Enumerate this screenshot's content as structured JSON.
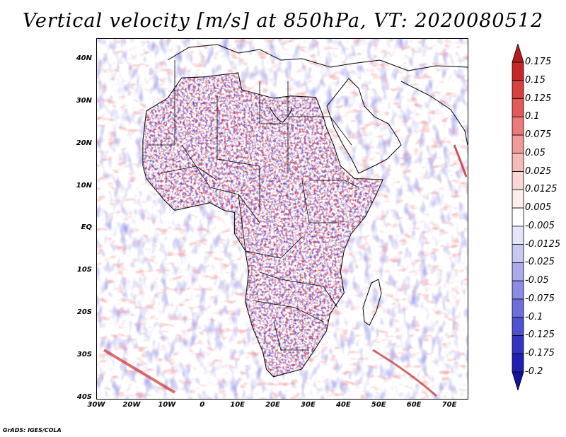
{
  "title": "Vertical velocity [m/s] at 850hPa, VT: 2020080512",
  "credit": "GrADS: IGES/COLA",
  "lat_labels": [
    "40N",
    "30N",
    "20N",
    "10N",
    "EQ",
    "10S",
    "20S",
    "30S",
    "40S"
  ],
  "lat_values": [
    40,
    30,
    20,
    10,
    0,
    -10,
    -20,
    -30,
    -40
  ],
  "lon_labels": [
    "30W",
    "20W",
    "10W",
    "0",
    "10E",
    "20E",
    "30E",
    "40E",
    "50E",
    "60E",
    "70E"
  ],
  "lon_values": [
    -30,
    -20,
    -10,
    0,
    10,
    20,
    30,
    40,
    50,
    60,
    70
  ],
  "extent": {
    "lon_min": -30,
    "lon_max": 75,
    "lat_min": -40,
    "lat_max": 45
  },
  "colorbar": {
    "labels": [
      "0.175",
      "0.15",
      "0.125",
      "0.1",
      "0.075",
      "0.05",
      "0.025",
      "0.0125",
      "0.005",
      "-0.005",
      "-0.0125",
      "-0.025",
      "-0.05",
      "-0.075",
      "-0.1",
      "-0.125",
      "-0.175",
      "-0.2"
    ],
    "colors": [
      "#b71c1c",
      "#c62828",
      "#d84040",
      "#e45a5a",
      "#ec7a7a",
      "#f29a9a",
      "#f6baba",
      "#fad6d6",
      "#fdeeee",
      "#ffffff",
      "#e4e4fa",
      "#c8c8f2",
      "#aaaaec",
      "#8c8ce4",
      "#6e6edc",
      "#5050d2",
      "#3434c4",
      "#2020b4",
      "#14149c"
    ]
  },
  "colors": {
    "land_positive": "#d84848",
    "land_negative": "#5a5ad8",
    "ocean_positive": "#f2a8a8",
    "ocean_negative": "#a8a8ee",
    "coast": "#000000"
  }
}
